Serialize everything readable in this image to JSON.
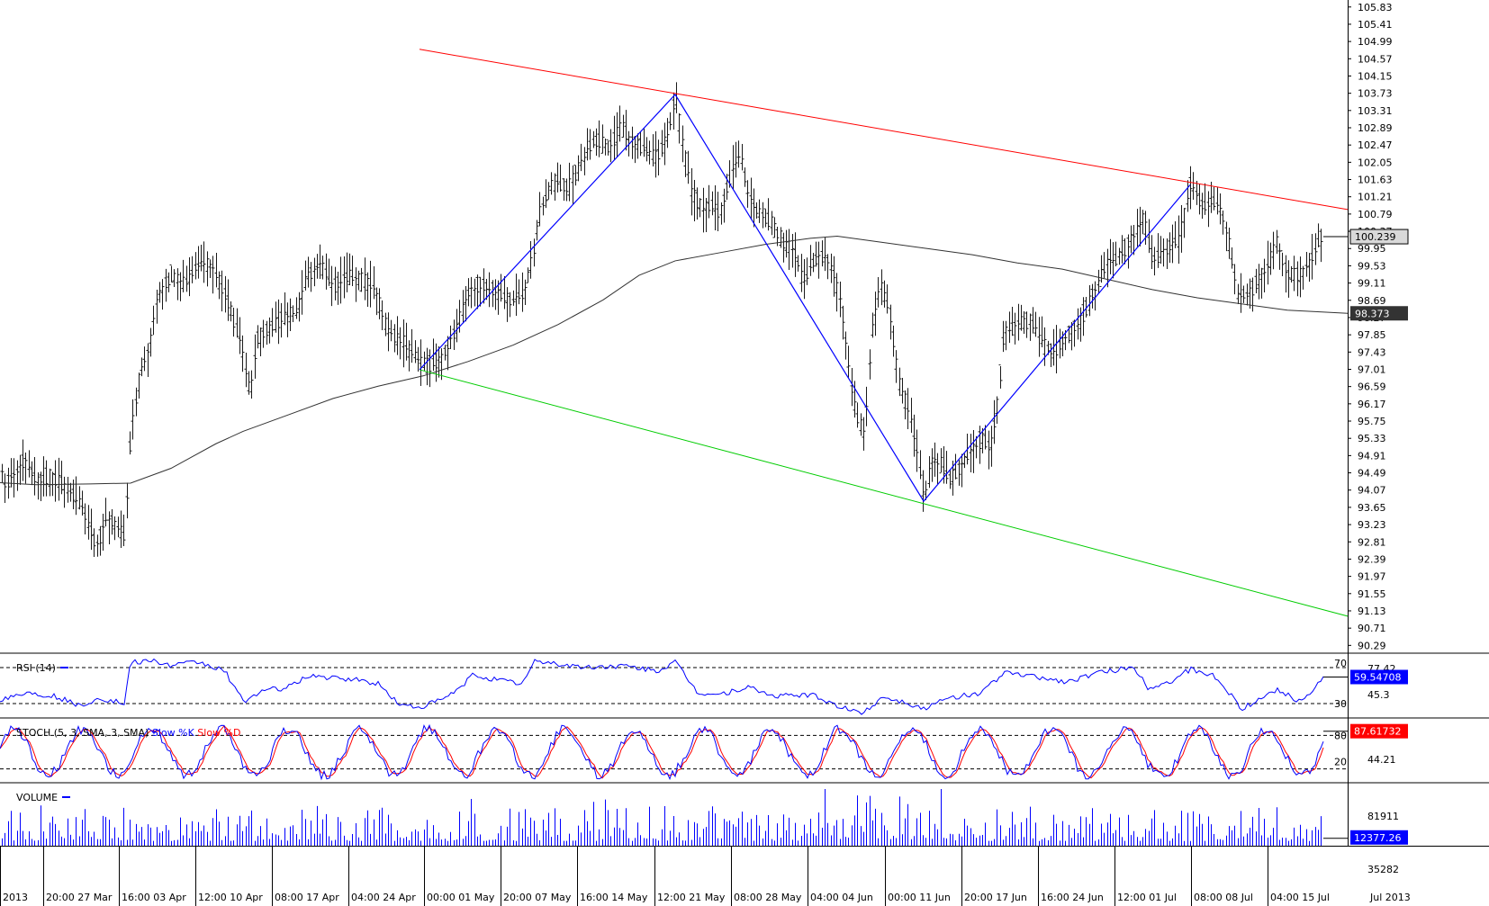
{
  "chart_data": {
    "type": "candlestick",
    "colors": {
      "price_bar": "#1a1a1a",
      "moving_average": "#333333",
      "resistance_line": "#ff0000",
      "support_line": "#00cc00",
      "zigzag": "#0000ff",
      "rsi": "#0000ff",
      "stoch_k": "#0000ff",
      "stoch_d": "#ff0000",
      "volume": "#0000ff",
      "last_price_bg": "#d9d9d9",
      "ma_value_bg": "#333333",
      "rsi_value_bg": "#0000ff",
      "stoch_value_bg": "#ff0000",
      "volume_value_bg": "#0000ff"
    },
    "price_axis": {
      "ylim": [
        90.1,
        106.0
      ],
      "ticks": [
        "105.83",
        "105.41",
        "104.99",
        "104.57",
        "104.15",
        "103.73",
        "103.31",
        "102.89",
        "102.47",
        "102.05",
        "101.63",
        "101.21",
        "100.79",
        "100.37",
        "99.95",
        "99.53",
        "99.11",
        "98.69",
        "98.27",
        "97.85",
        "97.43",
        "97.01",
        "96.59",
        "96.17",
        "95.75",
        "95.33",
        "94.91",
        "94.49",
        "94.07",
        "93.65",
        "93.23",
        "92.81",
        "92.39",
        "91.97",
        "91.55",
        "91.13",
        "90.71",
        "90.29"
      ],
      "last_price_label": "100.239",
      "ma_label": "98.373"
    },
    "time_axis": {
      "labels": [
        "2013",
        "20:00 27 Mar",
        "16:00 03 Apr",
        "12:00 10 Apr",
        "08:00 17 Apr",
        "04:00 24 Apr",
        "00:00 01 May",
        "20:00 07 May",
        "16:00 14 May",
        "12:00 21 May",
        "08:00 28 May",
        "04:00 04 Jun",
        "00:00 11 Jun",
        "20:00 17 Jun",
        "16:00 24 Jun",
        "12:00 01 Jul",
        "08:00 08 Jul",
        "04:00 15 Jul"
      ],
      "right_label": "Jul 2013"
    },
    "price_path": [
      [
        0,
        94.9
      ],
      [
        4,
        94.2
      ],
      [
        16,
        94.5
      ],
      [
        28,
        94.8
      ],
      [
        40,
        94.3
      ],
      [
        55,
        94.4
      ],
      [
        70,
        94.2
      ],
      [
        90,
        93.7
      ],
      [
        107,
        92.7
      ],
      [
        118,
        93.4
      ],
      [
        128,
        93.2
      ],
      [
        138,
        92.9
      ],
      [
        145,
        95.5
      ],
      [
        155,
        96.9
      ],
      [
        165,
        97.5
      ],
      [
        175,
        98.8
      ],
      [
        190,
        99.3
      ],
      [
        205,
        99.1
      ],
      [
        220,
        99.6
      ],
      [
        235,
        99.5
      ],
      [
        250,
        98.8
      ],
      [
        265,
        97.8
      ],
      [
        278,
        96.4
      ],
      [
        285,
        97.8
      ],
      [
        300,
        98.0
      ],
      [
        315,
        98.3
      ],
      [
        330,
        98.4
      ],
      [
        340,
        99.2
      ],
      [
        355,
        99.6
      ],
      [
        370,
        99.0
      ],
      [
        385,
        99.3
      ],
      [
        400,
        99.2
      ],
      [
        415,
        99.0
      ],
      [
        430,
        98.0
      ],
      [
        450,
        97.6
      ],
      [
        466,
        97.2
      ],
      [
        475,
        97.1
      ],
      [
        490,
        97.3
      ],
      [
        505,
        97.9
      ],
      [
        520,
        98.9
      ],
      [
        535,
        99.1
      ],
      [
        550,
        98.9
      ],
      [
        565,
        98.7
      ],
      [
        580,
        98.8
      ],
      [
        590,
        99.6
      ],
      [
        600,
        100.9
      ],
      [
        615,
        101.6
      ],
      [
        630,
        101.4
      ],
      [
        645,
        102.0
      ],
      [
        660,
        102.6
      ],
      [
        675,
        102.4
      ],
      [
        690,
        102.9
      ],
      [
        700,
        102.6
      ],
      [
        715,
        102.4
      ],
      [
        730,
        102.2
      ],
      [
        742,
        102.7
      ],
      [
        750,
        103.7
      ],
      [
        758,
        102.5
      ],
      [
        768,
        101.3
      ],
      [
        780,
        100.9
      ],
      [
        790,
        101.0
      ],
      [
        800,
        100.8
      ],
      [
        812,
        101.8
      ],
      [
        822,
        102.3
      ],
      [
        830,
        101.3
      ],
      [
        840,
        100.9
      ],
      [
        855,
        100.6
      ],
      [
        870,
        100.1
      ],
      [
        882,
        99.9
      ],
      [
        892,
        99.1
      ],
      [
        905,
        99.7
      ],
      [
        915,
        99.8
      ],
      [
        925,
        99.4
      ],
      [
        935,
        98.5
      ],
      [
        945,
        96.6
      ],
      [
        952,
        95.8
      ],
      [
        960,
        95.4
      ],
      [
        968,
        97.9
      ],
      [
        978,
        99.1
      ],
      [
        988,
        98.4
      ],
      [
        998,
        96.7
      ],
      [
        1008,
        96.1
      ],
      [
        1018,
        95.1
      ],
      [
        1026,
        93.8
      ],
      [
        1035,
        94.8
      ],
      [
        1045,
        94.7
      ],
      [
        1055,
        94.3
      ],
      [
        1065,
        94.6
      ],
      [
        1075,
        94.9
      ],
      [
        1090,
        95.3
      ],
      [
        1100,
        95.1
      ],
      [
        1108,
        96.2
      ],
      [
        1115,
        97.9
      ],
      [
        1130,
        98.1
      ],
      [
        1145,
        98.2
      ],
      [
        1160,
        97.6
      ],
      [
        1170,
        97.4
      ],
      [
        1185,
        97.8
      ],
      [
        1200,
        98.2
      ],
      [
        1215,
        98.9
      ],
      [
        1230,
        99.6
      ],
      [
        1245,
        99.8
      ],
      [
        1260,
        100.3
      ],
      [
        1270,
        100.7
      ],
      [
        1280,
        99.7
      ],
      [
        1295,
        99.9
      ],
      [
        1310,
        100.2
      ],
      [
        1322,
        101.5
      ],
      [
        1335,
        101.0
      ],
      [
        1350,
        101.1
      ],
      [
        1360,
        100.6
      ],
      [
        1368,
        99.7
      ],
      [
        1375,
        98.8
      ],
      [
        1385,
        98.8
      ],
      [
        1395,
        99.1
      ],
      [
        1405,
        99.4
      ],
      [
        1418,
        100.1
      ],
      [
        1430,
        99.3
      ],
      [
        1445,
        99.3
      ],
      [
        1455,
        99.6
      ],
      [
        1465,
        100.2
      ],
      [
        1470,
        100.24
      ]
    ],
    "ma_path": [
      [
        0,
        94.25
      ],
      [
        40,
        94.2
      ],
      [
        100,
        94.22
      ],
      [
        145,
        94.24
      ],
      [
        190,
        94.6
      ],
      [
        240,
        95.2
      ],
      [
        270,
        95.5
      ],
      [
        320,
        95.9
      ],
      [
        370,
        96.3
      ],
      [
        420,
        96.6
      ],
      [
        470,
        96.85
      ],
      [
        520,
        97.2
      ],
      [
        570,
        97.6
      ],
      [
        620,
        98.1
      ],
      [
        670,
        98.7
      ],
      [
        710,
        99.3
      ],
      [
        750,
        99.65
      ],
      [
        800,
        99.85
      ],
      [
        850,
        100.05
      ],
      [
        900,
        100.2
      ],
      [
        930,
        100.25
      ],
      [
        980,
        100.1
      ],
      [
        1030,
        99.95
      ],
      [
        1080,
        99.8
      ],
      [
        1130,
        99.6
      ],
      [
        1180,
        99.45
      ],
      [
        1230,
        99.2
      ],
      [
        1280,
        98.95
      ],
      [
        1330,
        98.75
      ],
      [
        1380,
        98.6
      ],
      [
        1430,
        98.45
      ],
      [
        1497,
        98.373
      ]
    ],
    "resistance_line": [
      [
        466,
        104.8
      ],
      [
        1497,
        100.9
      ]
    ],
    "support_line": [
      [
        466,
        97.0
      ],
      [
        1497,
        91.0
      ]
    ],
    "zigzag": [
      [
        466,
        97.0
      ],
      [
        750,
        103.7
      ],
      [
        1026,
        93.8
      ],
      [
        1322,
        101.5
      ]
    ],
    "rsi": {
      "label": "RSI (14)",
      "period": 14,
      "levels_labels": [
        "70",
        "30"
      ],
      "axis_labels": [
        "77.42",
        "45.3"
      ],
      "value_label": "59.54708",
      "upper_level": 70,
      "lower_level": 30,
      "min": 15,
      "max": 85,
      "path": [
        [
          0,
          35
        ],
        [
          30,
          42
        ],
        [
          60,
          38
        ],
        [
          90,
          28
        ],
        [
          110,
          36
        ],
        [
          138,
          30
        ],
        [
          145,
          75
        ],
        [
          165,
          78
        ],
        [
          190,
          72
        ],
        [
          220,
          76
        ],
        [
          250,
          66
        ],
        [
          270,
          32
        ],
        [
          290,
          44
        ],
        [
          320,
          48
        ],
        [
          345,
          62
        ],
        [
          365,
          58
        ],
        [
          390,
          57
        ],
        [
          420,
          52
        ],
        [
          445,
          28
        ],
        [
          466,
          26
        ],
        [
          490,
          34
        ],
        [
          510,
          46
        ],
        [
          525,
          62
        ],
        [
          555,
          56
        ],
        [
          580,
          52
        ],
        [
          595,
          78
        ],
        [
          620,
          74
        ],
        [
          650,
          70
        ],
        [
          690,
          72
        ],
        [
          730,
          66
        ],
        [
          750,
          76
        ],
        [
          775,
          42
        ],
        [
          800,
          40
        ],
        [
          830,
          48
        ],
        [
          860,
          38
        ],
        [
          900,
          40
        ],
        [
          945,
          22
        ],
        [
          960,
          20
        ],
        [
          980,
          38
        ],
        [
          1010,
          30
        ],
        [
          1026,
          24
        ],
        [
          1055,
          36
        ],
        [
          1090,
          42
        ],
        [
          1115,
          64
        ],
        [
          1150,
          60
        ],
        [
          1185,
          54
        ],
        [
          1220,
          64
        ],
        [
          1260,
          70
        ],
        [
          1275,
          48
        ],
        [
          1300,
          54
        ],
        [
          1322,
          68
        ],
        [
          1350,
          60
        ],
        [
          1368,
          38
        ],
        [
          1380,
          24
        ],
        [
          1400,
          36
        ],
        [
          1418,
          46
        ],
        [
          1440,
          34
        ],
        [
          1455,
          40
        ],
        [
          1470,
          59.5
        ]
      ]
    },
    "stoch": {
      "label": "STOCH (5, 3, SMA, 3, SMA)",
      "k_label": "Slow %K",
      "d_label": "Slow %D",
      "levels_labels": [
        "80",
        "20"
      ],
      "axis_label": "44.21",
      "value_label": "87.61732",
      "upper_level": 80,
      "lower_level": 20,
      "seed": 17
    },
    "volume": {
      "label": "VOLUME",
      "axis_labels": [
        "81911",
        "35282"
      ],
      "value_label": "12377.26",
      "max": 95000,
      "last": 12377
    }
  }
}
